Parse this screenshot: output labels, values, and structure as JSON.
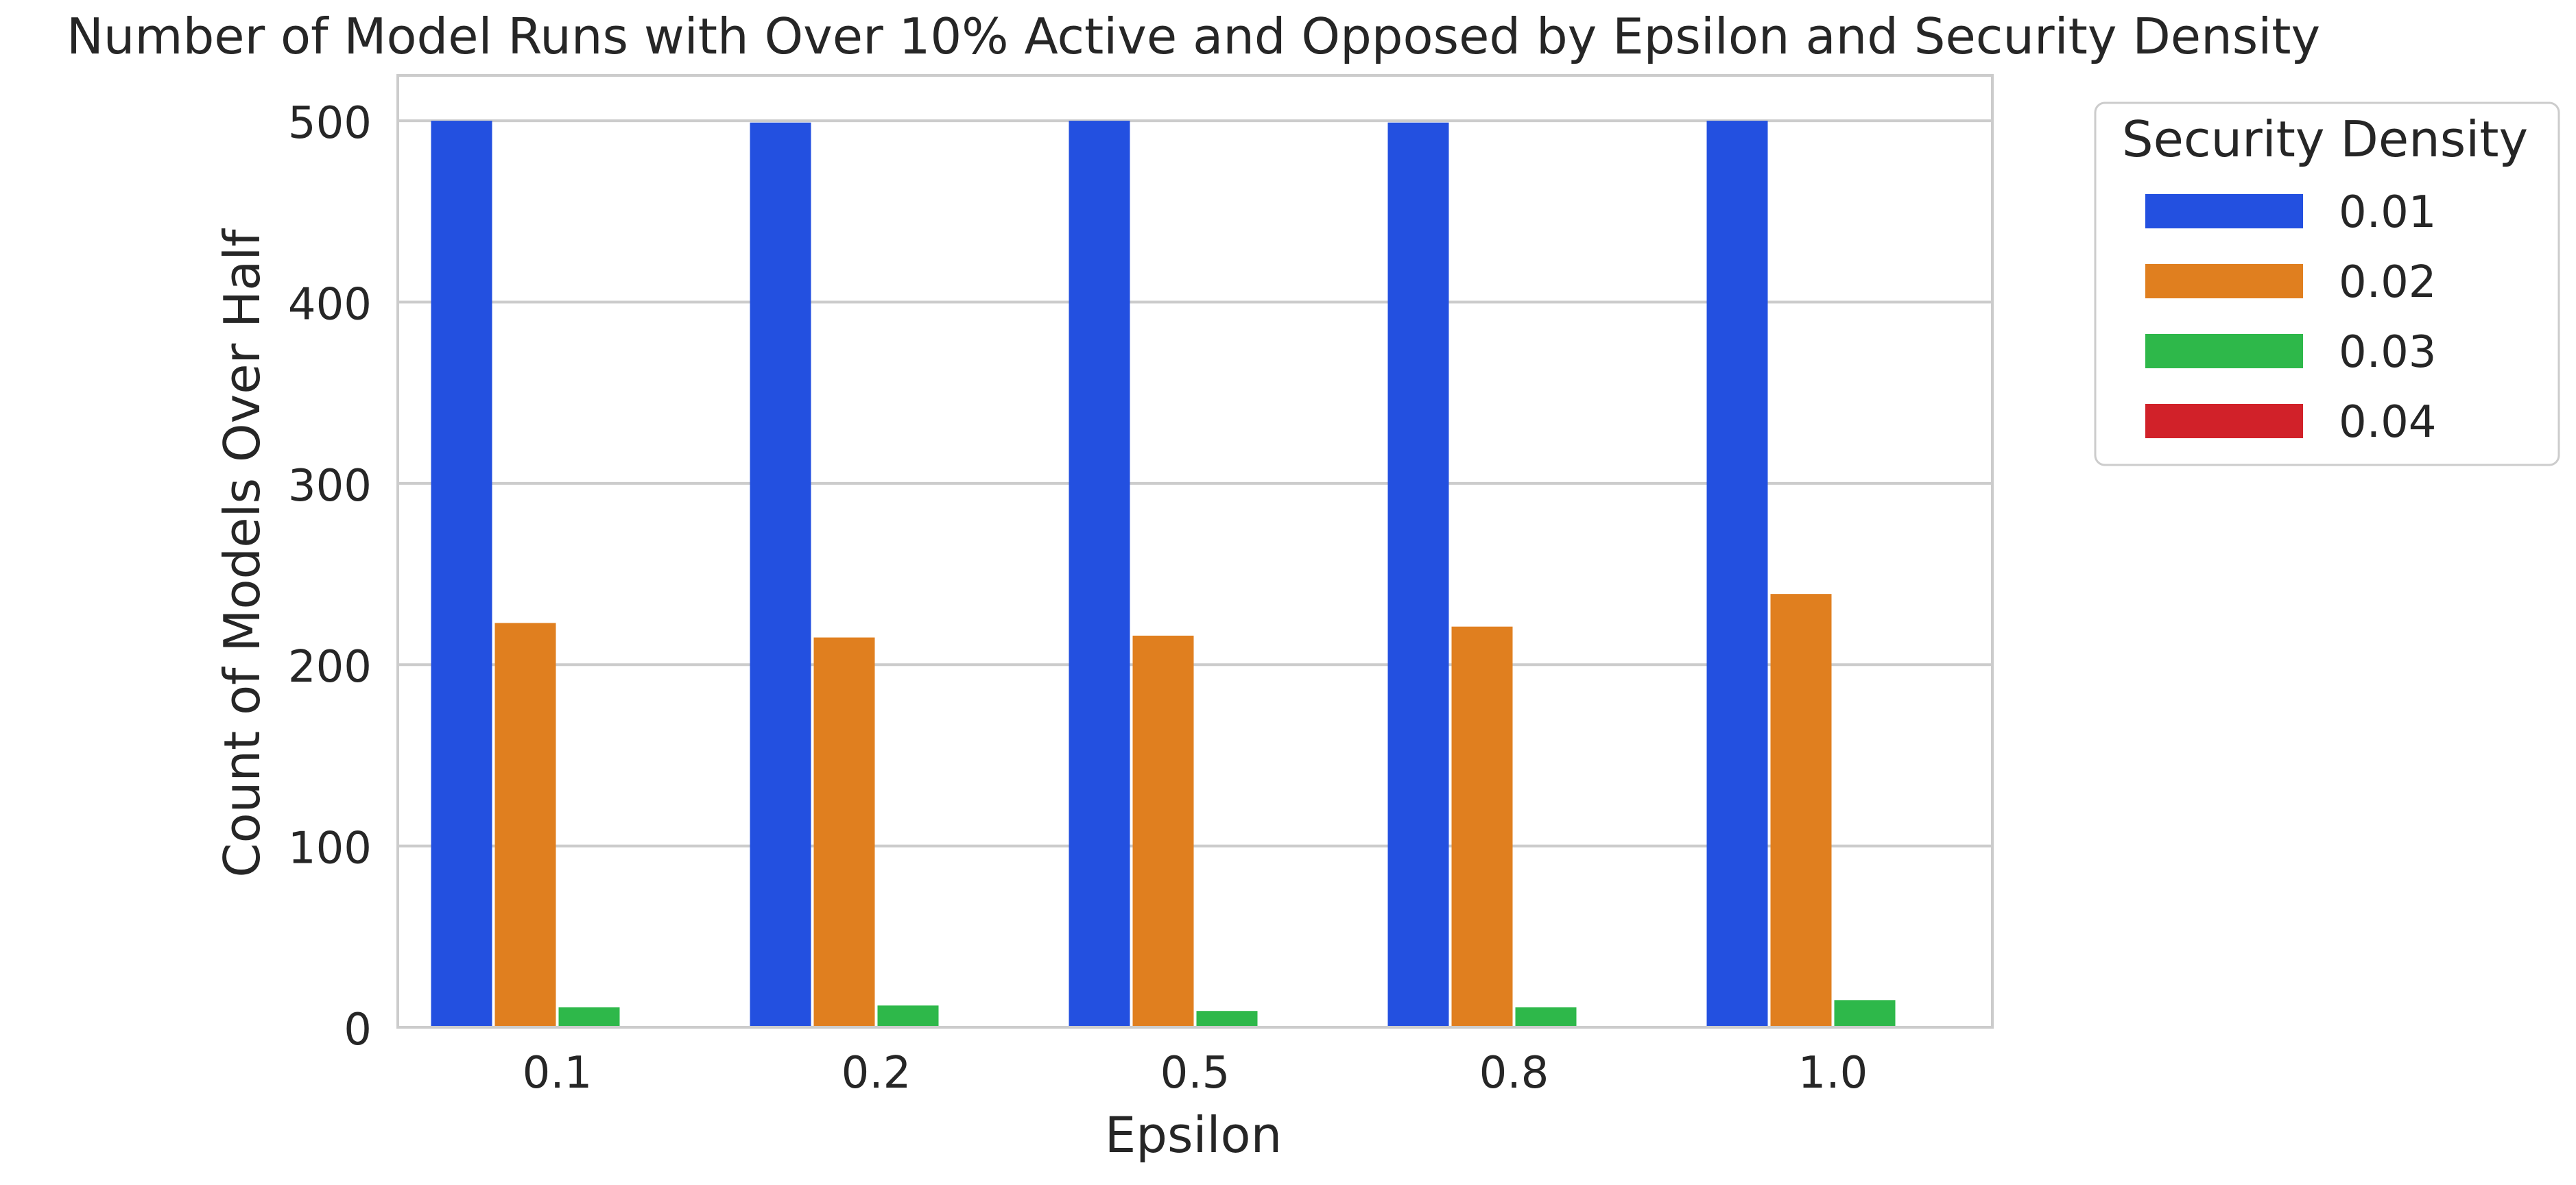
{
  "chart_data": {
    "type": "bar",
    "title": "Number of Model Runs with Over 10% Active and Opposed by Epsilon and Security Density",
    "xlabel": "Epsilon",
    "ylabel": "Count of Models Over Half",
    "categories": [
      "0.1",
      "0.2",
      "0.5",
      "0.8",
      "1.0"
    ],
    "ylim": [
      0,
      525
    ],
    "yticks": [
      0,
      100,
      200,
      300,
      400,
      500
    ],
    "grid": true,
    "legend": {
      "title": "Security Density",
      "placement": "outside-upper-right"
    },
    "series": [
      {
        "name": "0.01",
        "color": "#2350e0",
        "values": [
          500,
          499,
          500,
          499,
          500
        ]
      },
      {
        "name": "0.02",
        "color": "#e07f1f",
        "values": [
          223,
          215,
          216,
          221,
          239
        ]
      },
      {
        "name": "0.03",
        "color": "#2eb84a",
        "values": [
          11,
          12,
          9,
          11,
          15
        ]
      },
      {
        "name": "0.04",
        "color": "#d12129",
        "values": [
          0,
          0,
          0,
          0,
          0
        ]
      }
    ]
  }
}
